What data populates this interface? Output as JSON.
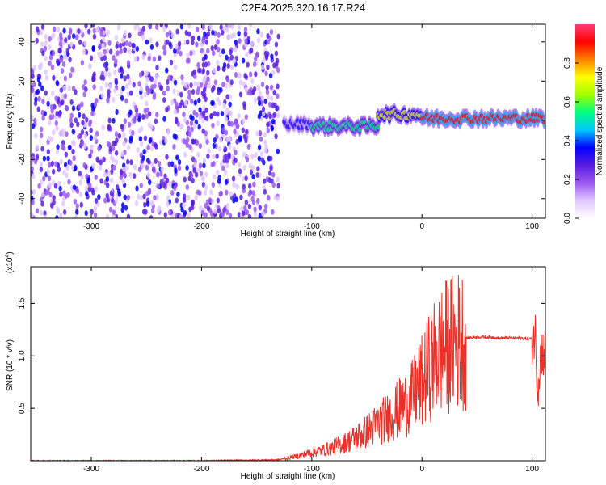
{
  "title": "C2E4.2025.320.16.17.R24",
  "chart_data": [
    {
      "type": "heatmap",
      "xlabel": "Height of straight line (km)",
      "ylabel": "Frequency (Hz)",
      "xlim": [
        -355,
        112
      ],
      "ylim": [
        -50,
        49
      ],
      "xticks": [
        -300,
        -200,
        -100,
        0,
        100
      ],
      "yticks": [
        40,
        20,
        0,
        -20,
        -40
      ],
      "colorbar": {
        "label": "Normalized spectral amplitude",
        "range": [
          0,
          1
        ],
        "ticks": [
          "0.0",
          "0.2",
          "0.4",
          "0.6",
          "0.8"
        ],
        "colors": [
          "#ffffff",
          "#e0c8ff",
          "#9b59f0",
          "#5a1ee0",
          "#0000ff",
          "#00c8ff",
          "#00ff80",
          "#a0ff00",
          "#ffff00",
          "#ff8000",
          "#ff0000",
          "#ff3c78"
        ]
      },
      "regions": [
        {
          "x_range": [
            -355,
            -130
          ],
          "freq_range": [
            -50,
            49
          ],
          "amplitude": "scattered noise 0.05-0.35"
        },
        {
          "x_range": [
            -125,
            -100
          ],
          "freq_center": -2,
          "amplitude": 0.4
        },
        {
          "x_range": [
            -100,
            -40
          ],
          "freq_center": -3,
          "amplitude": 0.55
        },
        {
          "x_range": [
            -40,
            0
          ],
          "freq_center": 3,
          "amplitude": 0.75
        },
        {
          "x_range": [
            0,
            112
          ],
          "freq_center": 1,
          "amplitude": 0.9
        }
      ]
    },
    {
      "type": "line",
      "xlabel": "Height of straight line (km)",
      "ylabel": "SNR (10 * v/v)",
      "multiplier_label": "(x10",
      "multiplier_exp": "4",
      "multiplier_close": ")",
      "xlim": [
        -355,
        112
      ],
      "ylim": [
        0,
        1.85
      ],
      "xticks": [
        -300,
        -200,
        -100,
        0,
        100
      ],
      "yticks": [
        "0.5",
        "1.0",
        "1.5"
      ],
      "ytick_values": [
        0.5,
        1.0,
        1.5
      ],
      "color": "#e8322a",
      "series": [
        {
          "x": [
            -355,
            -300,
            -200,
            -130,
            -120,
            -110,
            -100,
            -90,
            -80,
            -70,
            -60,
            -50,
            -40,
            -30,
            -20,
            -10,
            -5,
            0,
            10,
            20,
            30,
            40,
            50,
            60,
            70,
            80,
            90,
            100,
            103,
            105,
            108,
            112
          ],
          "y": [
            0.0,
            0.0,
            0.0,
            0.01,
            0.03,
            0.05,
            0.08,
            0.1,
            0.13,
            0.17,
            0.22,
            0.28,
            0.35,
            0.42,
            0.5,
            0.58,
            0.68,
            0.75,
            0.95,
            1.08,
            1.14,
            1.17,
            1.18,
            1.18,
            1.17,
            1.17,
            1.17,
            1.16,
            1.2,
            0.7,
            1.05,
            1.02
          ]
        }
      ]
    }
  ]
}
